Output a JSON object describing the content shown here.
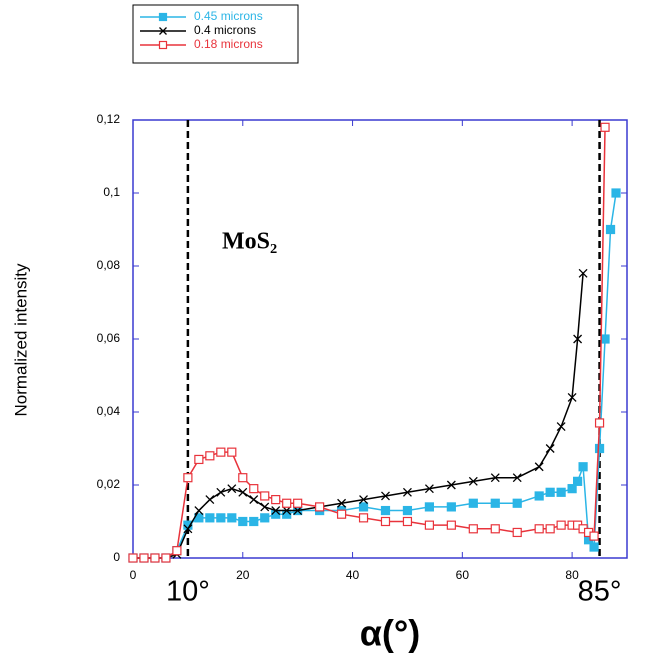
{
  "chart_data": {
    "type": "line",
    "y_label": "Normalized intensity",
    "x_label": "α(°)",
    "annotation": "MoS₂",
    "legend": "top-left",
    "xlim": [
      0,
      90
    ],
    "ylim": [
      0,
      0.12
    ],
    "xticks": [
      0,
      20,
      40,
      60,
      80
    ],
    "yticks": [
      0,
      {
        "value": 0.02,
        "label": "0,02"
      },
      {
        "value": 0.04,
        "label": "0,04"
      },
      {
        "value": 0.06,
        "label": "0,06"
      },
      {
        "value": 0.08,
        "label": "0,08"
      },
      {
        "value": 0.1,
        "label": "0,1"
      },
      {
        "value": 0.12,
        "label": "0,12"
      }
    ],
    "vlines": [
      {
        "x": 10,
        "label": "10°"
      },
      {
        "x": 85,
        "label": "85°"
      }
    ],
    "x": [
      0,
      2,
      4,
      6,
      8,
      10,
      12,
      14,
      16,
      18,
      20,
      22,
      24,
      26,
      28,
      30,
      34,
      38,
      42,
      46,
      50,
      54,
      58,
      62,
      66,
      70,
      74,
      76,
      78,
      80,
      81,
      82,
      83,
      84,
      85,
      86,
      87,
      88
    ],
    "series": [
      {
        "name": "0.45 microns",
        "color": "#2bb5e6",
        "marker": "square-filled",
        "values": [
          0,
          0,
          0,
          0,
          0.002,
          0.009,
          0.011,
          0.011,
          0.011,
          0.011,
          0.01,
          0.01,
          0.011,
          0.012,
          0.012,
          0.013,
          0.013,
          0.013,
          0.014,
          0.013,
          0.013,
          0.014,
          0.014,
          0.015,
          0.015,
          0.015,
          0.017,
          0.018,
          0.018,
          0.019,
          0.021,
          0.025,
          0.005,
          0.003,
          0.03,
          0.06,
          0.09,
          0.1
        ]
      },
      {
        "name": "0.4 microns",
        "color": "#000000",
        "marker": "x",
        "values": [
          0,
          0,
          0,
          0,
          0.001,
          0.008,
          0.013,
          0.016,
          0.018,
          0.019,
          0.018,
          0.016,
          0.014,
          0.013,
          0.013,
          0.013,
          0.014,
          0.015,
          0.016,
          0.017,
          0.018,
          0.019,
          0.02,
          0.021,
          0.022,
          0.022,
          0.025,
          0.03,
          0.036,
          0.044,
          0.06,
          0.078,
          null,
          null,
          null,
          null,
          null,
          null
        ]
      },
      {
        "name": "0.18 microns",
        "color": "#e8333b",
        "marker": "square-open",
        "values": [
          0,
          0,
          0,
          0,
          0.002,
          0.022,
          0.027,
          0.028,
          0.029,
          0.029,
          0.022,
          0.019,
          0.017,
          0.016,
          0.015,
          0.015,
          0.014,
          0.012,
          0.011,
          0.01,
          0.01,
          0.009,
          0.009,
          0.008,
          0.008,
          0.007,
          0.008,
          0.008,
          0.009,
          0.009,
          0.009,
          0.008,
          0.007,
          0.006,
          0.037,
          0.118,
          null,
          null
        ]
      }
    ]
  }
}
